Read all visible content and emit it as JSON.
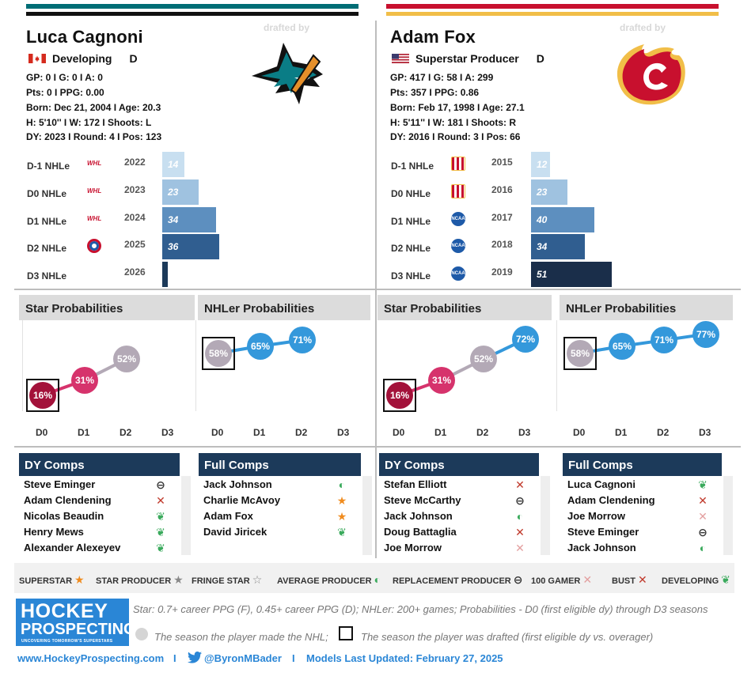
{
  "players": [
    {
      "name": "Luca Cagnoni",
      "drafted_by": "drafted by",
      "team_logo": "san-jose-sharks-logo",
      "flag": "canada-flag-icon",
      "status": "Developing",
      "position": "D",
      "stats_line1": "GP: 0 I G: 0 I A: 0",
      "stats_line2": "Pts: 0 I PPG: 0.00",
      "stats_line3": "Born: Dec 21, 2004 I Age: 20.3",
      "stats_line4": "H: 5'10'' I W: 172 I Shoots: L",
      "stats_line5": "DY: 2023 I Round: 4 I Pos: 123",
      "accent_color": "#006d75",
      "nhle_rows": [
        {
          "label": "D-1 NHLe",
          "year": "2022",
          "value": 14,
          "display": "14",
          "league_logo": "whl-logo",
          "color": "#c8dff0"
        },
        {
          "label": "D0 NHLe",
          "year": "2023",
          "value": 23,
          "display": "23",
          "league_logo": "whl-logo",
          "color": "#9fc2e0"
        },
        {
          "label": "D1 NHLe",
          "year": "2024",
          "value": 34,
          "display": "34",
          "league_logo": "whl-logo",
          "color": "#5d8fbf"
        },
        {
          "label": "D2 NHLe",
          "year": "2025",
          "value": 36,
          "display": "36",
          "league_logo": "ahl-logo",
          "color": "#305e90"
        },
        {
          "label": "D3 NHLe",
          "year": "2026",
          "value": 0,
          "display": "",
          "league_logo": "",
          "color": "#1c3a5a"
        }
      ],
      "star_probabilities": {
        "title": "Star Probabilities",
        "values": [
          16,
          31,
          52
        ],
        "labels": [
          "16%",
          "31%",
          "52%"
        ],
        "drafted_index": 0
      },
      "nhler_probabilities": {
        "title": "NHLer Probabilities",
        "values": [
          58,
          65,
          71
        ],
        "labels": [
          "58%",
          "65%",
          "71%"
        ],
        "drafted_index": 0
      },
      "axis_labels": [
        "D0",
        "D1",
        "D2",
        "D3"
      ],
      "dy_comps": {
        "title": "DY Comps",
        "rows": [
          {
            "name": "Steve Eminger",
            "outcome": "replacement-producer"
          },
          {
            "name": "Adam Clendening",
            "outcome": "bust"
          },
          {
            "name": "Nicolas Beaudin",
            "outcome": "developing"
          },
          {
            "name": "Henry Mews",
            "outcome": "developing"
          },
          {
            "name": "Alexander Alexeyev",
            "outcome": "developing"
          }
        ]
      },
      "full_comps": {
        "title": "Full Comps",
        "rows": [
          {
            "name": "Jack Johnson",
            "outcome": "average-producer"
          },
          {
            "name": "Charlie McAvoy",
            "outcome": "superstar"
          },
          {
            "name": "Adam Fox",
            "outcome": "superstar"
          },
          {
            "name": "David Jiricek",
            "outcome": "developing"
          }
        ]
      }
    },
    {
      "name": "Adam Fox",
      "drafted_by": "drafted by",
      "team_logo": "calgary-flames-logo",
      "flag": "usa-flag-icon",
      "status": "Superstar Producer",
      "position": "D",
      "stats_line1": "GP: 417 I G: 58 I A: 299",
      "stats_line2": "Pts: 357 I PPG: 0.86",
      "stats_line3": "Born: Feb 17, 1998 I Age: 27.1",
      "stats_line4": "H: 5'11'' I W: 181 I Shoots: R",
      "stats_line5": "DY: 2016 I Round: 3 I Pos: 66",
      "accent_color": "#c8102e",
      "nhle_rows": [
        {
          "label": "D-1 NHLe",
          "year": "2015",
          "value": 12,
          "display": "12",
          "league_logo": "usntdp-logo",
          "color": "#c8dff0"
        },
        {
          "label": "D0 NHLe",
          "year": "2016",
          "value": 23,
          "display": "23",
          "league_logo": "usntdp-logo",
          "color": "#9fc2e0"
        },
        {
          "label": "D1 NHLe",
          "year": "2017",
          "value": 40,
          "display": "40",
          "league_logo": "ncaa-logo",
          "color": "#5d8fbf"
        },
        {
          "label": "D2 NHLe",
          "year": "2018",
          "value": 34,
          "display": "34",
          "league_logo": "ncaa-logo",
          "color": "#305e90"
        },
        {
          "label": "D3 NHLe",
          "year": "2019",
          "value": 51,
          "display": "51",
          "league_logo": "ncaa-logo",
          "color": "#1a2e4a"
        }
      ],
      "star_probabilities": {
        "title": "Star Probabilities",
        "values": [
          16,
          31,
          52,
          72
        ],
        "labels": [
          "16%",
          "31%",
          "52%",
          "72%"
        ],
        "drafted_index": 0
      },
      "nhler_probabilities": {
        "title": "NHLer Probabilities",
        "values": [
          58,
          65,
          71,
          77
        ],
        "labels": [
          "58%",
          "65%",
          "71%",
          "77%"
        ],
        "drafted_index": 0
      },
      "axis_labels": [
        "D0",
        "D1",
        "D2",
        "D3"
      ],
      "dy_comps": {
        "title": "DY Comps",
        "rows": [
          {
            "name": "Stefan Elliott",
            "outcome": "bust"
          },
          {
            "name": "Steve McCarthy",
            "outcome": "replacement-producer"
          },
          {
            "name": "Jack Johnson",
            "outcome": "average-producer"
          },
          {
            "name": "Doug Battaglia",
            "outcome": "bust"
          },
          {
            "name": "Joe Morrow",
            "outcome": "100-gamer"
          }
        ]
      },
      "full_comps": {
        "title": "Full Comps",
        "rows": [
          {
            "name": "Luca Cagnoni",
            "outcome": "developing"
          },
          {
            "name": "Adam Clendening",
            "outcome": "bust"
          },
          {
            "name": "Joe Morrow",
            "outcome": "100-gamer"
          },
          {
            "name": "Steve Eminger",
            "outcome": "replacement-producer"
          },
          {
            "name": "Jack Johnson",
            "outcome": "average-producer"
          }
        ]
      }
    }
  ],
  "legend": [
    {
      "label": "SUPERSTAR",
      "icon": "superstar"
    },
    {
      "label": "STAR PRODUCER",
      "icon": "star-producer"
    },
    {
      "label": "FRINGE STAR",
      "icon": "fringe-star"
    },
    {
      "label": "AVERAGE PRODUCER",
      "icon": "average-producer"
    },
    {
      "label": "REPLACEMENT PRODUCER",
      "icon": "replacement-producer"
    },
    {
      "label": "100 GAMER",
      "icon": "100-gamer"
    },
    {
      "label": "BUST",
      "icon": "bust"
    },
    {
      "label": "DEVELOPING",
      "icon": "developing"
    }
  ],
  "notes": {
    "definition": "Star: 0.7+ career PPG (F), 0.45+ career PPG (D); NHLer: 200+ games; Probabilities - D0 (first eligible dy) through D3 seasons",
    "nhl_season": "The season the player made the NHL;",
    "drafted_season": "The season the player was drafted (first eligible dy vs. overager)"
  },
  "brand": {
    "line1": "HOCKEY",
    "line2": "PROSPECTING",
    "line3": "UNCOVERING TOMORROW'S SUPERSTARS"
  },
  "footer": {
    "website": "www.HockeyProspecting.com",
    "sep1": "I",
    "twitter": "@ByronMBader",
    "sep2": "I",
    "updated": "Models Last Updated: February 27, 2025"
  },
  "colors": {
    "star_dots": [
      "#a3123a",
      "#d6336c",
      "#b3a9b6",
      "#3498db"
    ],
    "nhler_dots": [
      "#b3a9b6",
      "#3498db",
      "#3498db",
      "#3498db"
    ],
    "comp_header": "#1c3a5a",
    "brand_blue": "#2a86d6"
  }
}
